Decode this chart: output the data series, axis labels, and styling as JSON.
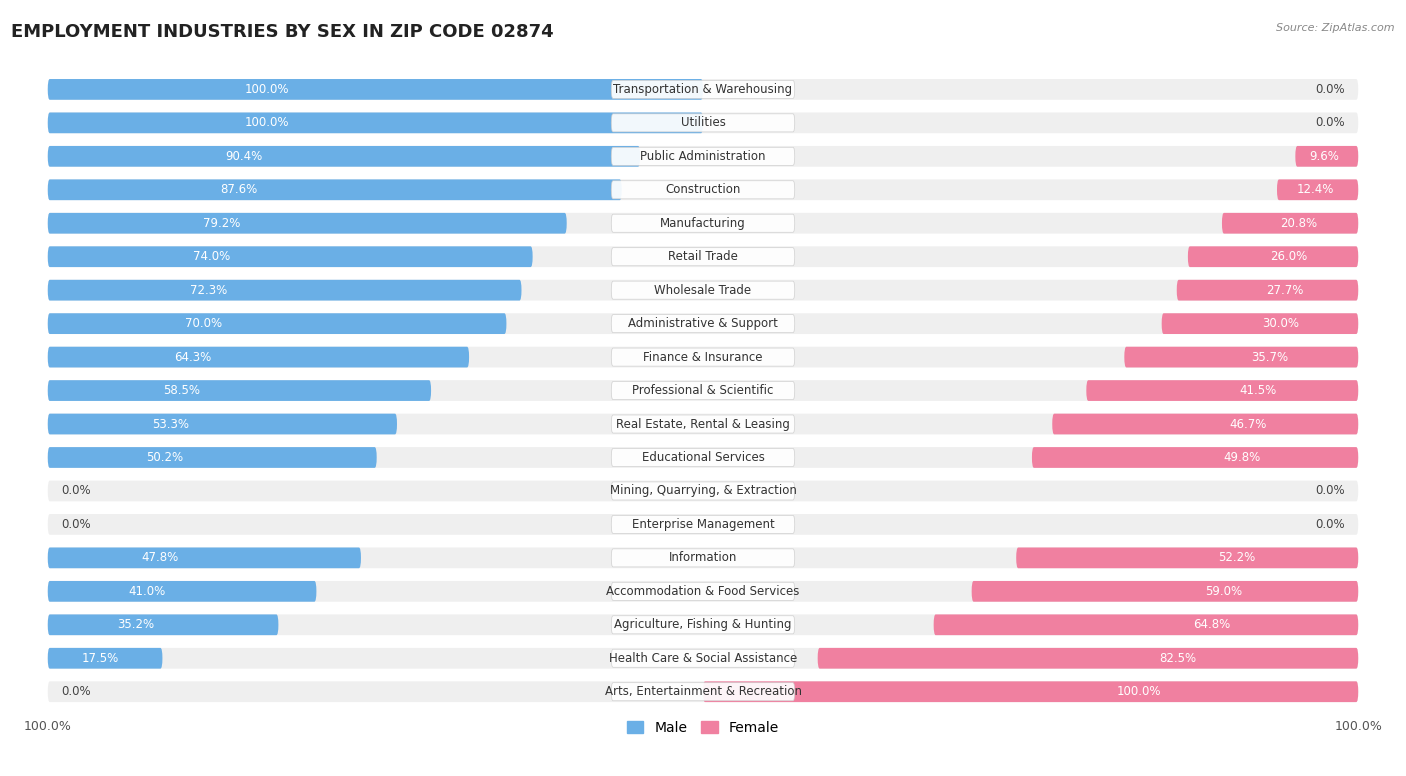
{
  "title": "EMPLOYMENT INDUSTRIES BY SEX IN ZIP CODE 02874",
  "source": "Source: ZipAtlas.com",
  "male_color": "#6aafe6",
  "female_color": "#f080a0",
  "background_color": "#ffffff",
  "row_bg_color": "#efefef",
  "categories": [
    "Transportation & Warehousing",
    "Utilities",
    "Public Administration",
    "Construction",
    "Manufacturing",
    "Retail Trade",
    "Wholesale Trade",
    "Administrative & Support",
    "Finance & Insurance",
    "Professional & Scientific",
    "Real Estate, Rental & Leasing",
    "Educational Services",
    "Mining, Quarrying, & Extraction",
    "Enterprise Management",
    "Information",
    "Accommodation & Food Services",
    "Agriculture, Fishing & Hunting",
    "Health Care & Social Assistance",
    "Arts, Entertainment & Recreation"
  ],
  "male_pct": [
    100.0,
    100.0,
    90.4,
    87.6,
    79.2,
    74.0,
    72.3,
    70.0,
    64.3,
    58.5,
    53.3,
    50.2,
    0.0,
    0.0,
    47.8,
    41.0,
    35.2,
    17.5,
    0.0
  ],
  "female_pct": [
    0.0,
    0.0,
    9.6,
    12.4,
    20.8,
    26.0,
    27.7,
    30.0,
    35.7,
    41.5,
    46.7,
    49.8,
    0.0,
    0.0,
    52.2,
    59.0,
    64.8,
    82.5,
    100.0
  ],
  "legend_male": "Male",
  "legend_female": "Female",
  "label_fontsize": 8.5,
  "pct_fontsize": 8.5,
  "title_fontsize": 13
}
